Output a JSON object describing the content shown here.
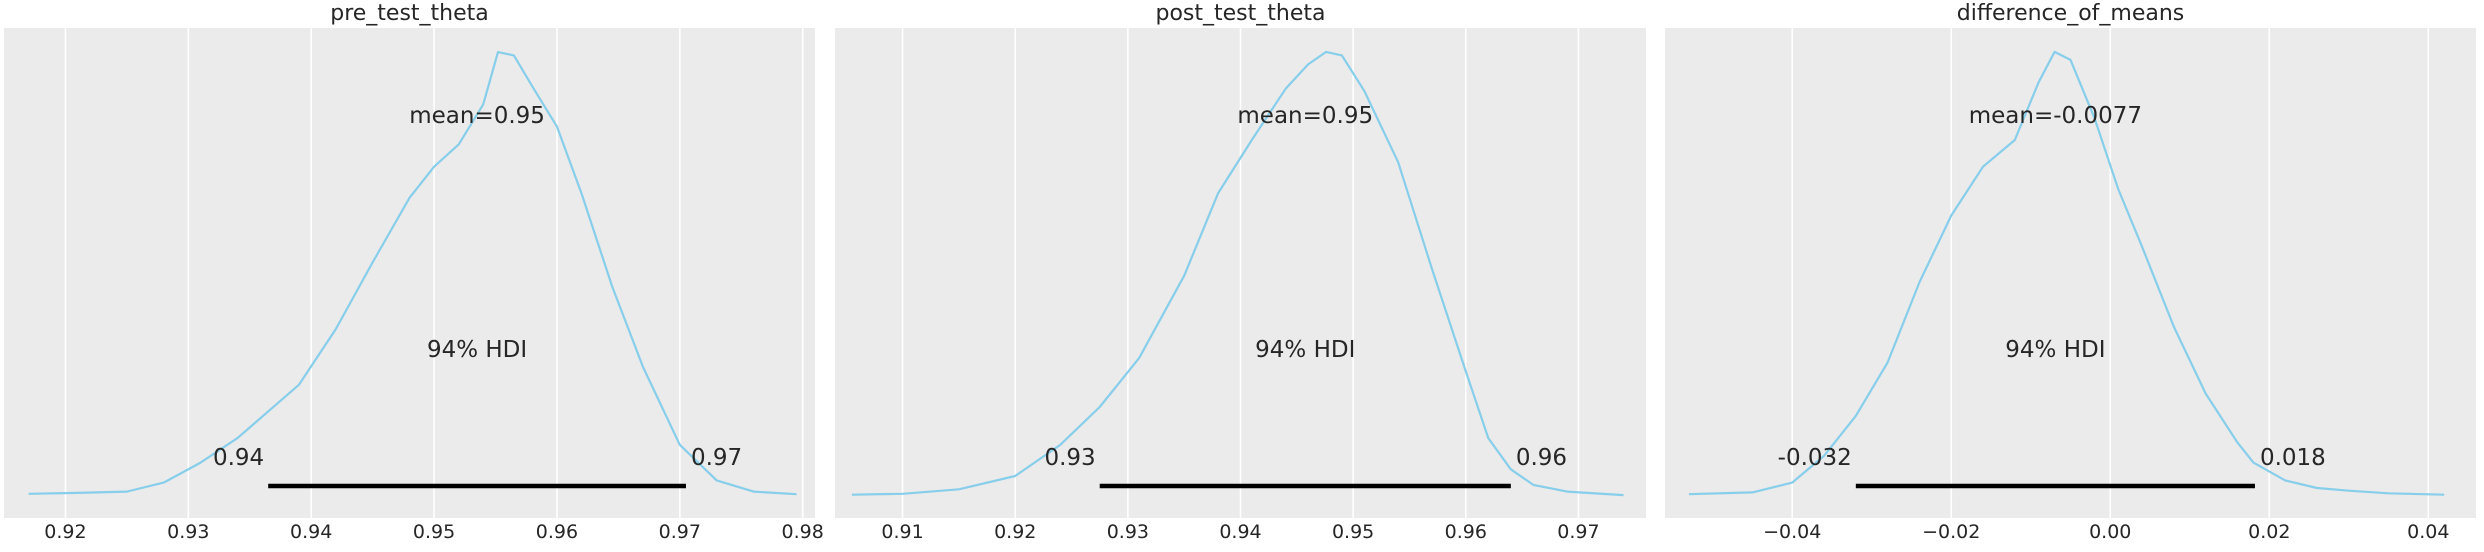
{
  "chart_data": [
    {
      "type": "area",
      "title": "pre_test_theta",
      "xlim": [
        0.915,
        0.981
      ],
      "xticks": [
        0.92,
        0.93,
        0.94,
        0.95,
        0.96,
        0.97,
        0.98
      ],
      "tick_labels": [
        "0.92",
        "0.93",
        "0.94",
        "0.95",
        "0.96",
        "0.97",
        "0.98"
      ],
      "density": {
        "x": [
          0.917,
          0.921,
          0.925,
          0.928,
          0.931,
          0.934,
          0.9365,
          0.939,
          0.942,
          0.945,
          0.948,
          0.95,
          0.952,
          0.954,
          0.9552,
          0.9565,
          0.958,
          0.96,
          0.962,
          0.9645,
          0.967,
          0.97,
          0.973,
          0.976,
          0.9795
        ],
        "y": [
          0.005,
          0.007,
          0.01,
          0.03,
          0.075,
          0.13,
          0.19,
          0.25,
          0.375,
          0.525,
          0.67,
          0.74,
          0.79,
          0.88,
          0.9975,
          0.99,
          0.92,
          0.83,
          0.68,
          0.47,
          0.29,
          0.115,
          0.035,
          0.01,
          0.004
        ]
      },
      "density_peak": 1.0,
      "mean_label": "mean=0.95",
      "hdi": {
        "label": "94% HDI",
        "low": 0.9365,
        "high": 0.9705,
        "low_label": "0.94",
        "high_label": "0.97"
      }
    },
    {
      "type": "area",
      "title": "post_test_theta",
      "xlim": [
        0.904,
        0.976
      ],
      "xticks": [
        0.91,
        0.92,
        0.93,
        0.94,
        0.95,
        0.96,
        0.97
      ],
      "tick_labels": [
        "0.91",
        "0.92",
        "0.93",
        "0.94",
        "0.95",
        "0.96",
        "0.97"
      ],
      "density": {
        "x": [
          0.9055,
          0.91,
          0.915,
          0.92,
          0.924,
          0.9275,
          0.931,
          0.935,
          0.938,
          0.941,
          0.944,
          0.946,
          0.9476,
          0.949,
          0.951,
          0.954,
          0.957,
          0.96,
          0.962,
          0.964,
          0.966,
          0.969,
          0.974
        ],
        "y": [
          0.003,
          0.005,
          0.015,
          0.045,
          0.115,
          0.2,
          0.31,
          0.495,
          0.68,
          0.8,
          0.915,
          0.97,
          0.998,
          0.99,
          0.91,
          0.75,
          0.51,
          0.28,
          0.13,
          0.06,
          0.025,
          0.01,
          0.002
        ]
      },
      "density_peak": 1.0,
      "mean_label": "mean=0.95",
      "hdi": {
        "label": "94% HDI",
        "low": 0.9275,
        "high": 0.964,
        "low_label": "0.93",
        "high_label": "0.96"
      }
    },
    {
      "type": "area",
      "title": "difference_of_means",
      "xlim": [
        -0.056,
        0.046
      ],
      "xticks": [
        -0.04,
        -0.02,
        0.0,
        0.02,
        0.04
      ],
      "tick_labels": [
        "−0.04",
        "−0.02",
        "0.00",
        "0.02",
        "0.04"
      ],
      "density": {
        "x": [
          -0.053,
          -0.045,
          -0.04,
          -0.036,
          -0.032,
          -0.028,
          -0.024,
          -0.02,
          -0.016,
          -0.012,
          -0.009,
          -0.007,
          -0.005,
          -0.002,
          0.001,
          0.004,
          0.008,
          0.012,
          0.016,
          0.018,
          0.022,
          0.026,
          0.03,
          0.035,
          0.042
        ],
        "y": [
          0.004,
          0.008,
          0.03,
          0.09,
          0.18,
          0.3,
          0.48,
          0.63,
          0.74,
          0.8,
          0.93,
          0.998,
          0.98,
          0.85,
          0.69,
          0.56,
          0.38,
          0.23,
          0.12,
          0.075,
          0.035,
          0.018,
          0.012,
          0.006,
          0.003
        ]
      },
      "density_peak": 1.0,
      "mean_label": "mean=-0.0077",
      "hdi": {
        "label": "94% HDI",
        "low": -0.032,
        "high": 0.0182,
        "low_label": "-0.032",
        "high_label": "0.018"
      }
    }
  ],
  "colors": {
    "panel_bg": "#ebebeb",
    "grid": "#ffffff",
    "density_line": "#87ceeb",
    "hdi_bar": "#000000",
    "text": "#262626"
  }
}
